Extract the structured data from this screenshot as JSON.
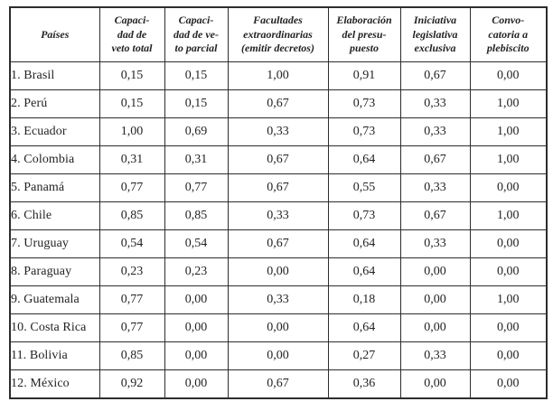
{
  "table": {
    "columns": [
      {
        "label": "Países"
      },
      {
        "label": "Capaci-\ndad de\nveto total"
      },
      {
        "label": "Capaci-\ndad de ve-\nto parcial"
      },
      {
        "label": "Facultades\nextraordinarias\n(emitir decretos)"
      },
      {
        "label": "Elaboración\ndel presu-\npuesto"
      },
      {
        "label": "Iniciativa\nlegislativa\nexclusiva"
      },
      {
        "label": "Convo-\ncatoria a\nplebiscito"
      }
    ],
    "rows": [
      {
        "country": "1. Brasil",
        "values": [
          "0,15",
          "0,15",
          "1,00",
          "0,91",
          "0,67",
          "0,00"
        ]
      },
      {
        "country": "2. Perú",
        "values": [
          "0,15",
          "0,15",
          "0,67",
          "0,73",
          "0,33",
          "1,00"
        ]
      },
      {
        "country": "3. Ecuador",
        "values": [
          "1,00",
          "0,69",
          "0,33",
          "0,73",
          "0,33",
          "1,00"
        ]
      },
      {
        "country": "4. Colombia",
        "values": [
          "0,31",
          "0,31",
          "0,67",
          "0,64",
          "0,67",
          "1,00"
        ]
      },
      {
        "country": "5. Panamá",
        "values": [
          "0,77",
          "0,77",
          "0,67",
          "0,55",
          "0,33",
          "0,00"
        ]
      },
      {
        "country": "6. Chile",
        "values": [
          "0,85",
          "0,85",
          "0,33",
          "0,73",
          "0,67",
          "1,00"
        ]
      },
      {
        "country": "7. Uruguay",
        "values": [
          "0,54",
          "0,54",
          "0,67",
          "0,64",
          "0,33",
          "0,00"
        ]
      },
      {
        "country": "8. Paraguay",
        "values": [
          "0,23",
          "0,23",
          "0,00",
          "0,64",
          "0,00",
          "0,00"
        ]
      },
      {
        "country": "9. Guatemala",
        "values": [
          "0,77",
          "0,00",
          "0,33",
          "0,18",
          "0,00",
          "1,00"
        ]
      },
      {
        "country": "10. Costa Rica",
        "values": [
          "0,77",
          "0,00",
          "0,00",
          "0,64",
          "0,00",
          "0,00"
        ]
      },
      {
        "country": "11. Bolivia",
        "values": [
          "0,85",
          "0,00",
          "0,00",
          "0,27",
          "0,33",
          "0,00"
        ]
      },
      {
        "country": "12. México",
        "values": [
          "0,92",
          "0,00",
          "0,67",
          "0,36",
          "0,00",
          "0,00"
        ]
      }
    ]
  }
}
